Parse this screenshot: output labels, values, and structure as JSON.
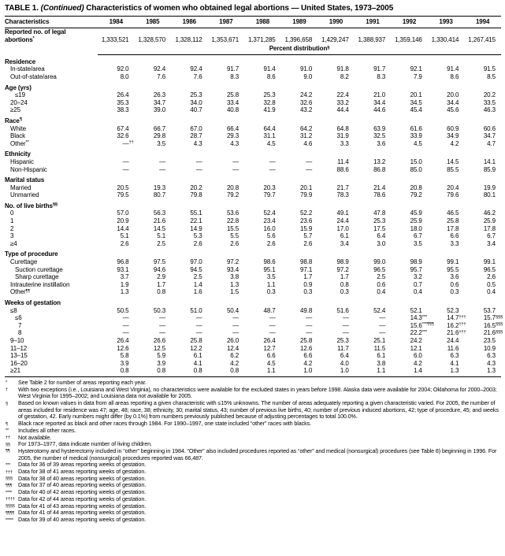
{
  "title": {
    "part1": "TABLE 1.",
    "part2": "(Continued)",
    "part3": "Characteristics of women who obtained legal abortions — United States, 1973–2005"
  },
  "table": {
    "col_header": "Characteristics",
    "years": [
      "1984",
      "1985",
      "1986",
      "1987",
      "1988",
      "1989",
      "1990",
      "1991",
      "1992",
      "1993",
      "1994"
    ],
    "rows": [
      {
        "t": "data",
        "label": "Reported no. of legal\nabortions",
        "sup": "*",
        "bold": true,
        "indent": 0,
        "values": [
          "1,333,521",
          "1,328,570",
          "1,328,112",
          "1,353,671",
          "1,371,285",
          "1,396,658",
          "1,429,247",
          "1,388,937",
          "1,359,146",
          "1,330,414",
          "1,267,415"
        ]
      },
      {
        "t": "span",
        "label": "Percent distribution",
        "sup": "§"
      },
      {
        "t": "section",
        "label": "Residence",
        "sup": ""
      },
      {
        "t": "data",
        "label": "In-state/area",
        "indent": 1,
        "values": [
          "92.0",
          "92.4",
          "92.4",
          "91.7",
          "91.4",
          "91.0",
          "91.8",
          "91.7",
          "92.1",
          "91.4",
          "91.5"
        ]
      },
      {
        "t": "data",
        "label": "Out-of-state/area",
        "indent": 1,
        "values": [
          "8.0",
          "7.6",
          "7.6",
          "8.3",
          "8.6",
          "9.0",
          "8.2",
          "8.3",
          "7.9",
          "8.6",
          "8.5"
        ]
      },
      {
        "t": "section",
        "label": "Age (yrs)",
        "sup": ""
      },
      {
        "t": "data",
        "label": "≤19",
        "indent": 2,
        "values": [
          "26.4",
          "26.3",
          "25.3",
          "25.8",
          "25.3",
          "24.2",
          "22.4",
          "21.0",
          "20.1",
          "20.0",
          "20.2"
        ]
      },
      {
        "t": "data",
        "label": "20–24",
        "indent": 1,
        "values": [
          "35.3",
          "34.7",
          "34.0",
          "33.4",
          "32.8",
          "32.6",
          "33.2",
          "34.4",
          "34.5",
          "34.4",
          "33.5"
        ]
      },
      {
        "t": "data",
        "label": "≥25",
        "indent": 1,
        "values": [
          "38.3",
          "39.0",
          "40.7",
          "40.8",
          "41.9",
          "43.2",
          "44.4",
          "44.6",
          "45.4",
          "45.6",
          "46.3"
        ]
      },
      {
        "t": "section",
        "label": "Race",
        "sup": "¶"
      },
      {
        "t": "data",
        "label": "White",
        "indent": 1,
        "values": [
          "67.4",
          "66.7",
          "67.0",
          "66.4",
          "64.4",
          "64.2",
          "64.8",
          "63.9",
          "61.6",
          "60.9",
          "60.6"
        ]
      },
      {
        "t": "data",
        "label": "Black",
        "indent": 1,
        "values": [
          "32.6",
          "29.8",
          "28.7",
          "29.3",
          "31.1",
          "31.2",
          "31.9",
          "32.5",
          "33.9",
          "34.9",
          "34.7"
        ]
      },
      {
        "t": "data",
        "label": "Other",
        "sup": "**",
        "indent": 1,
        "values": [
          {
            "v": "—",
            "s": "††"
          },
          "3.5",
          "4.3",
          "4.3",
          "4.5",
          "4.6",
          "3.3",
          "3.6",
          "4.5",
          "4.2",
          "4.7"
        ]
      },
      {
        "t": "section",
        "label": "Ethnicity",
        "sup": ""
      },
      {
        "t": "data",
        "label": "Hispanic",
        "indent": 1,
        "values": [
          "—",
          "—",
          "—",
          "—",
          "—",
          "—",
          "11.4",
          "13.2",
          "15.0",
          "14.5",
          "14.1"
        ]
      },
      {
        "t": "data",
        "label": "Non-Hispanic",
        "indent": 1,
        "values": [
          "—",
          "—",
          "—",
          "—",
          "—",
          "—",
          "88.6",
          "86.8",
          "85.0",
          "85.5",
          "85.9"
        ]
      },
      {
        "t": "section",
        "label": "Marital status",
        "sup": ""
      },
      {
        "t": "data",
        "label": "Married",
        "indent": 1,
        "values": [
          "20.5",
          "19.3",
          "20.2",
          "20.8",
          "20.3",
          "20.1",
          "21.7",
          "21.4",
          "20.8",
          "20.4",
          "19.9"
        ]
      },
      {
        "t": "data",
        "label": "Unmarried",
        "indent": 1,
        "values": [
          "79.5",
          "80.7",
          "79.8",
          "79.2",
          "79.7",
          "79.9",
          "78.3",
          "78.6",
          "79.2",
          "79.6",
          "80.1"
        ]
      },
      {
        "t": "section",
        "label": "No. of live births",
        "sup": "§§"
      },
      {
        "t": "data",
        "label": "0",
        "indent": 1,
        "values": [
          "57.0",
          "56.3",
          "55.1",
          "53.6",
          "52.4",
          "52.2",
          "49.1",
          "47.8",
          "45.9",
          "46.5",
          "46.2"
        ]
      },
      {
        "t": "data",
        "label": "1",
        "indent": 1,
        "values": [
          "20.9",
          "21.6",
          "22.1",
          "22.8",
          "23.4",
          "23.6",
          "24.4",
          "25.3",
          "25.9",
          "25.8",
          "25.9"
        ]
      },
      {
        "t": "data",
        "label": "2",
        "indent": 1,
        "values": [
          "14.4",
          "14.5",
          "14.9",
          "15.5",
          "16.0",
          "15.9",
          "17.0",
          "17.5",
          "18.0",
          "17.8",
          "17.8"
        ]
      },
      {
        "t": "data",
        "label": "3",
        "indent": 1,
        "values": [
          "5.1",
          "5.1",
          "5.3",
          "5.5",
          "5.6",
          "5.7",
          "6.1",
          "6.4",
          "6.7",
          "6.6",
          "6.7"
        ]
      },
      {
        "t": "data",
        "label": "≥4",
        "indent": 1,
        "values": [
          "2.6",
          "2.5",
          "2.6",
          "2.6",
          "2.6",
          "2.6",
          "3.4",
          "3.0",
          "3.5",
          "3.3",
          "3.4"
        ]
      },
      {
        "t": "section",
        "label": "Type of procedure",
        "sup": ""
      },
      {
        "t": "data",
        "label": "Curettage",
        "indent": 1,
        "values": [
          "96.8",
          "97.5",
          "97.0",
          "97.2",
          "98.6",
          "98.8",
          "98.9",
          "99.0",
          "98.9",
          "99.1",
          "99.1"
        ]
      },
      {
        "t": "data",
        "label": "Suction curettage",
        "indent": 2,
        "values": [
          "93.1",
          "94.6",
          "94.5",
          "93.4",
          "95.1",
          "97.1",
          "97.2",
          "96.5",
          "95.7",
          "95.5",
          "96.5"
        ]
      },
      {
        "t": "data",
        "label": "Sharp curettage",
        "indent": 2,
        "values": [
          "3.7",
          "2.9",
          "2.5",
          "3.8",
          "3.5",
          "1.7",
          "1.7",
          "2.5",
          "3.2",
          "3.6",
          "2.6"
        ]
      },
      {
        "t": "data",
        "label": "Intrauterine instillation",
        "indent": 1,
        "values": [
          "1.9",
          "1.7",
          "1.4",
          "1.3",
          "1.1",
          "0.9",
          "0.8",
          "0.6",
          "0.7",
          "0.6",
          "0.5"
        ]
      },
      {
        "t": "data",
        "label": "Other",
        "sup": "¶¶",
        "indent": 1,
        "values": [
          "1.3",
          "0.8",
          "1.6",
          "1.5",
          "0.3",
          "0.3",
          "0.3",
          "0.4",
          "0.4",
          "0.3",
          "0.4"
        ]
      },
      {
        "t": "section",
        "label": "Weeks of gestation",
        "sup": ""
      },
      {
        "t": "data",
        "label": "≤8",
        "indent": 1,
        "values": [
          "50.5",
          "50.3",
          "51.0",
          "50.4",
          "48.7",
          "49.8",
          "51.6",
          "52.4",
          "52.1",
          "52.3",
          "53.7"
        ]
      },
      {
        "t": "data",
        "label": "≤6",
        "indent": 2,
        "values": [
          "—",
          "—",
          "—",
          "—",
          "—",
          "—",
          "—",
          "—",
          {
            "v": "14.3",
            "s": "***"
          },
          {
            "v": "14.7",
            "s": "†††"
          },
          {
            "v": "15.7",
            "s": "§§§"
          }
        ]
      },
      {
        "t": "data",
        "label": "7",
        "indent": 3,
        "values": [
          "—",
          "—",
          "—",
          "—",
          "—",
          "—",
          "—",
          "—",
          {
            "v": "15.6",
            "s": "***¶¶¶"
          },
          {
            "v": "16.2",
            "s": "†††"
          },
          {
            "v": "16.5",
            "s": "§§§"
          }
        ]
      },
      {
        "t": "data",
        "label": "8",
        "indent": 3,
        "values": [
          "—",
          "—",
          "—",
          "—",
          "—",
          "—",
          "—",
          "—",
          {
            "v": "22.2",
            "s": "***"
          },
          {
            "v": "21.6",
            "s": "†††"
          },
          {
            "v": "21.6",
            "s": "§§§"
          }
        ]
      },
      {
        "t": "data",
        "label": "9–10",
        "indent": 1,
        "values": [
          "26.4",
          "26.6",
          "25.8",
          "26.0",
          "26.4",
          "25.8",
          "25.3",
          "25.1",
          "24.2",
          "24.4",
          "23.5"
        ]
      },
      {
        "t": "data",
        "label": "11–12",
        "indent": 1,
        "values": [
          "12.6",
          "12.5",
          "12.2",
          "12.4",
          "12.7",
          "12.6",
          "11.7",
          "11.5",
          "12.1",
          "11.6",
          "10.9"
        ]
      },
      {
        "t": "data",
        "label": "13–15",
        "indent": 1,
        "values": [
          "5.8",
          "5.9",
          "6.1",
          "6.2",
          "6.6",
          "6.6",
          "6.4",
          "6.1",
          "6.0",
          "6.3",
          "6.3"
        ]
      },
      {
        "t": "data",
        "label": "16–20",
        "indent": 1,
        "values": [
          "3.9",
          "3.9",
          "4.1",
          "4.2",
          "4.5",
          "4.2",
          "4.0",
          "3.8",
          "4.2",
          "4.1",
          "4.3"
        ]
      },
      {
        "t": "data",
        "label": "≥21",
        "indent": 1,
        "values": [
          "0.8",
          "0.8",
          "0.8",
          "0.8",
          "1.1",
          "1.0",
          "1.0",
          "1.1",
          "1.4",
          "1.3",
          "1.3"
        ]
      }
    ]
  },
  "footnotes": [
    {
      "marker": "*",
      "text": "See Table 2 for number of areas reporting each year."
    },
    {
      "marker": "†",
      "text": "With two exceptions (i.e., Louisiana and West Virginia), no characteristics were available for the excluded states in years before 1998. Alaska data were available for 2004; Oklahoma for 2000–2003; West Virginia for 1995–2002; and Louisiana data not available for 2005."
    },
    {
      "marker": "§",
      "text": "Based on known values in data from all areas reporting a given characteristic with ≤15% unknowns. The number of areas adequately reporting a given characteristic varied. For 2005, the number of areas included for residence was 47; age, 48; race, 38; ethnicity, 30; marital status, 43; number of previous live births, 40; number of previous induced abortions, 42; type of procedure, 45; and weeks of gestation, 42. Early numbers might differ (by 0.1%) from numbers previously published because of adjusting percentages to total 100.0%."
    },
    {
      "marker": "¶",
      "text": "Black race reported as black and other races through 1984. For 1990–1997, one state included “other” races with blacks."
    },
    {
      "marker": "**",
      "text": "Includes all other races."
    },
    {
      "marker": "††",
      "text": "Not available."
    },
    {
      "marker": "§§",
      "text": "For 1973–1977, data indicate number of living children."
    },
    {
      "marker": "¶¶",
      "text": "Hysterotomy and hysterectomy included in “other” beginning in 1984. “Other” also included procedures reported as “other” and medical (nonsurgical) procedures (see Table 8) beginning in 1996. For 2005, the number of medical (nonsurgical) procedures reported was 66,487."
    },
    {
      "marker": "***",
      "text": "Data for 36 of 39 areas reporting weeks of gestation."
    },
    {
      "marker": "†††",
      "text": "Data for 38 of 41 areas reporting weeks of gestation."
    },
    {
      "marker": "§§§",
      "text": "Data for 38 of 40 areas reporting weeks of gestation."
    },
    {
      "marker": "¶¶¶",
      "text": "Data for 37 of 40 areas reporting weeks of gestation."
    },
    {
      "marker": "****",
      "text": "Data for 40 of 42 areas reporting weeks of gestation."
    },
    {
      "marker": "††††",
      "text": "Data for 42 of 44 areas reporting weeks of gestation."
    },
    {
      "marker": "§§§§",
      "text": "Data for 41 of 43 areas reporting weeks of gestation."
    },
    {
      "marker": "¶¶¶¶",
      "text": "Data for 41 of 44 areas reporting weeks of gestation."
    },
    {
      "marker": "*****",
      "text": "Data for 39 of 40 areas reporting weeks of gestation."
    }
  ]
}
